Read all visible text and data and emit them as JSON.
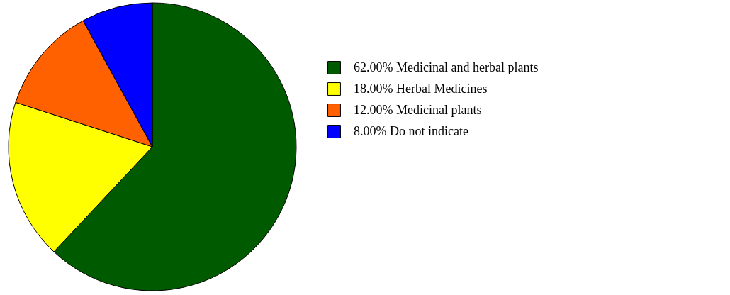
{
  "chart_data": {
    "type": "pie",
    "categories": [
      "Medicinal and herbal plants",
      "Herbal Medicines",
      "Medicinal plants",
      "Do not indicate"
    ],
    "values": [
      62,
      18,
      12,
      8
    ],
    "value_labels": [
      "62.00%",
      "18.00%",
      "12.00%",
      "8.00%"
    ],
    "colors": [
      "#005a00",
      "#ffff00",
      "#ff6000",
      "#0000ff"
    ],
    "legend": "right"
  }
}
